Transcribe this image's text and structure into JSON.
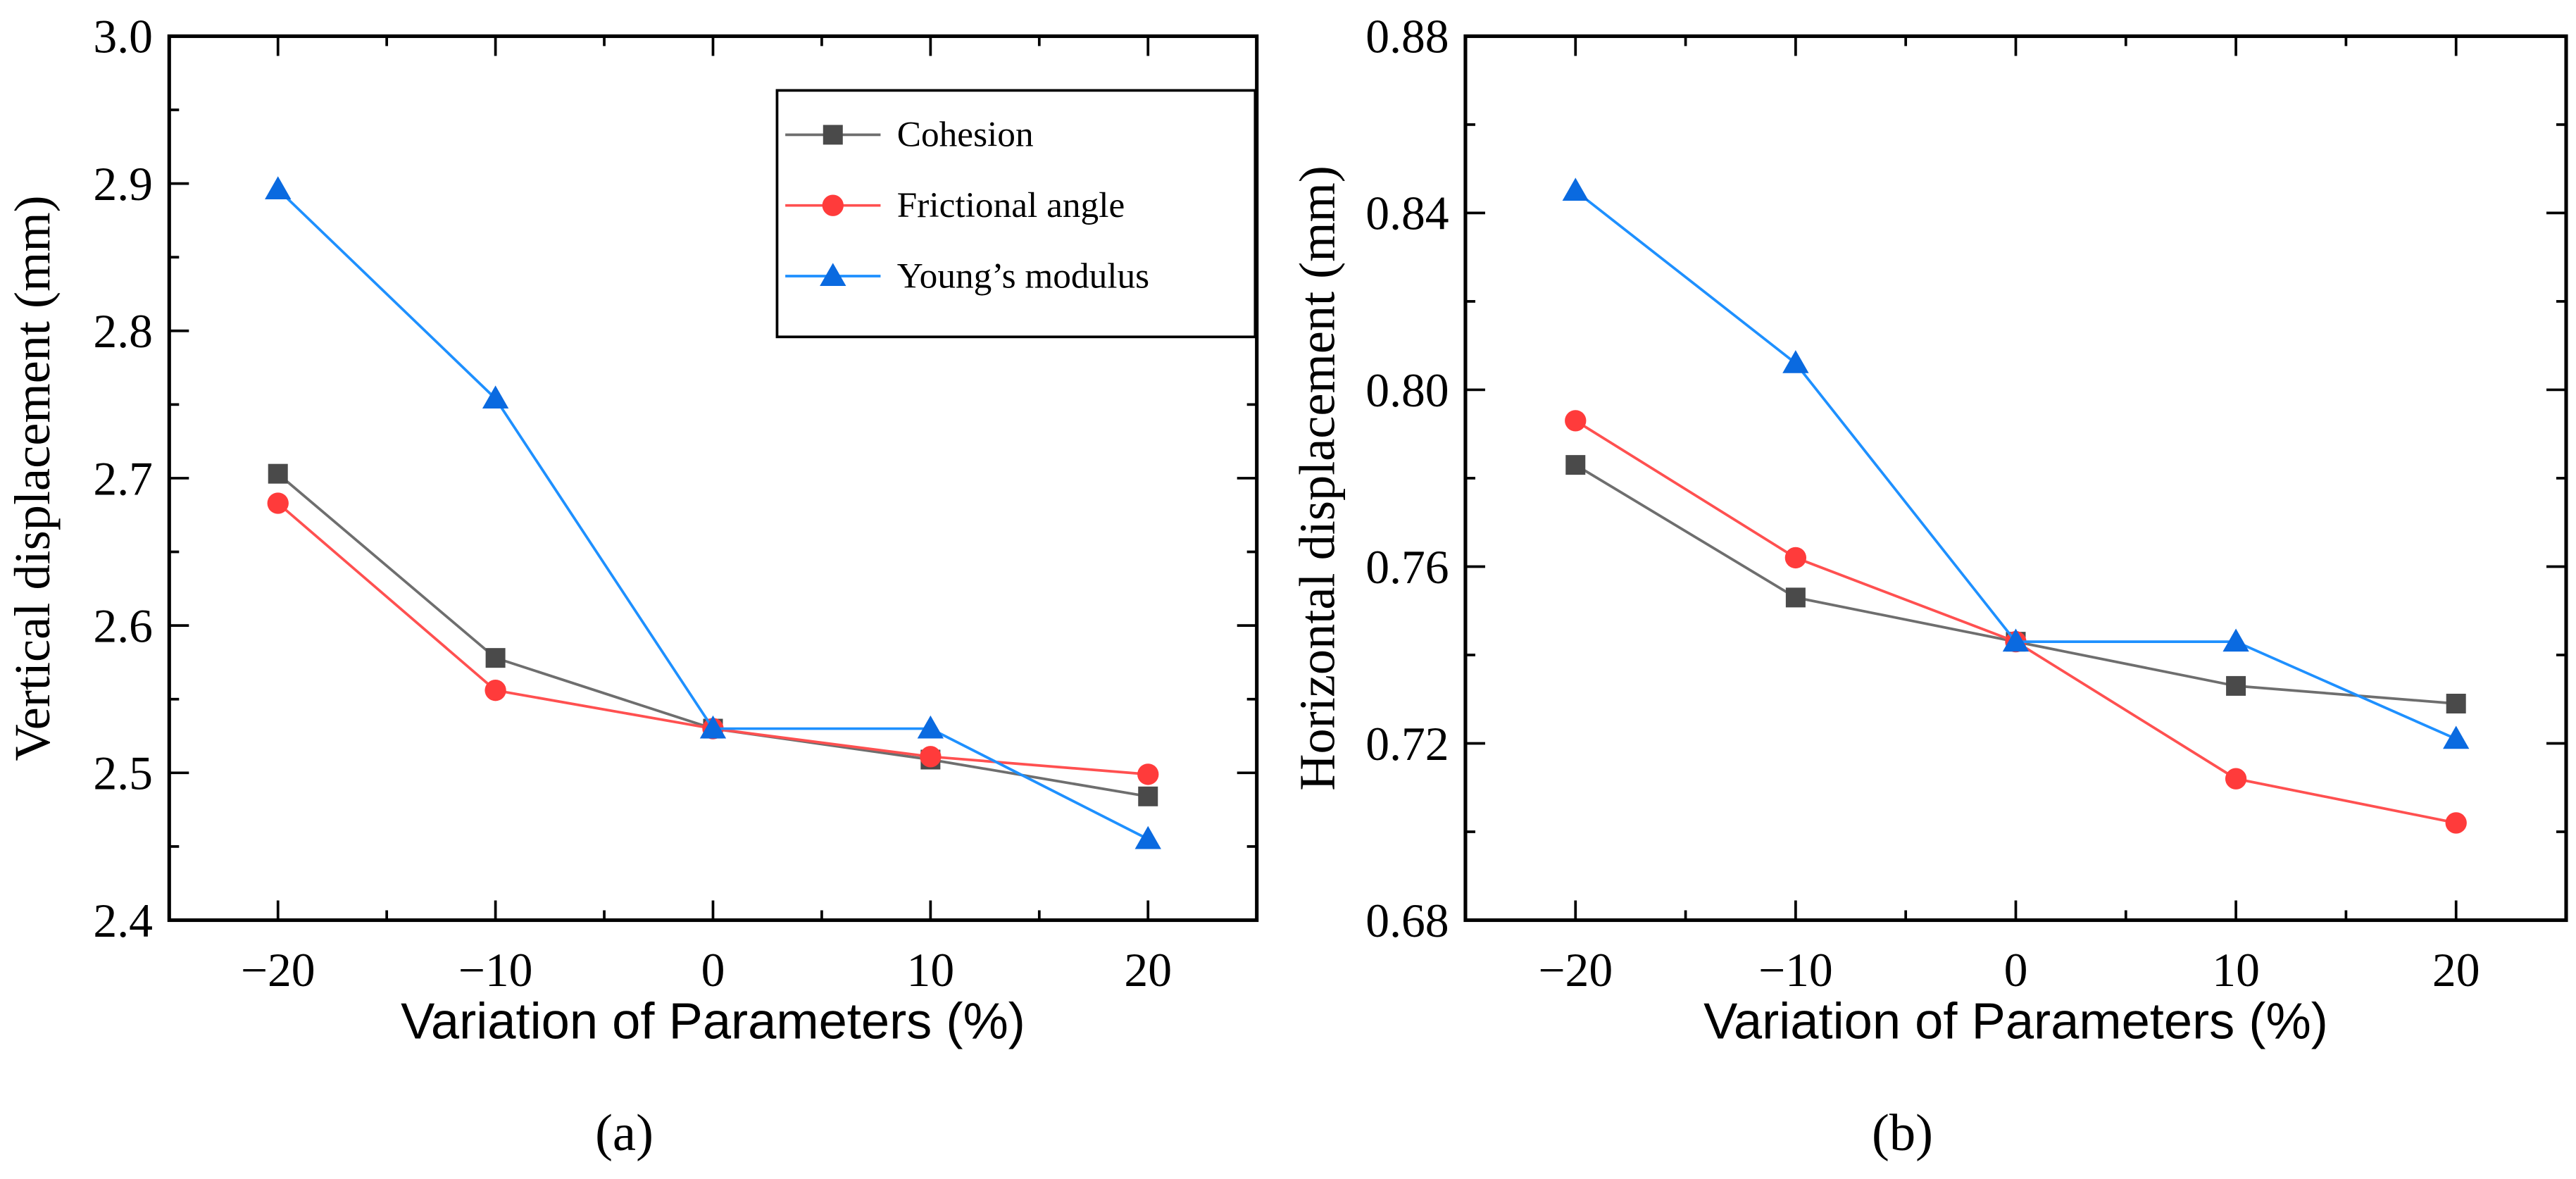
{
  "chart_data": [
    {
      "type": "line",
      "panel_label": "(a)",
      "xlabel": "Variation of  Parameters (%)",
      "ylabel": "Vertical displacement (mm)",
      "xlim": [
        -25,
        25
      ],
      "ylim": [
        2.4,
        3.0
      ],
      "xticks": [
        -20,
        -10,
        0,
        10,
        20
      ],
      "xtick_labels": [
        "−20",
        "−10",
        "0",
        "10",
        "20"
      ],
      "yticks": [
        2.4,
        2.5,
        2.6,
        2.7,
        2.8,
        2.9,
        3.0
      ],
      "ytick_labels": [
        "2.4",
        "2.5",
        "2.6",
        "2.7",
        "2.8",
        "2.9",
        "3.0"
      ],
      "grid": false,
      "legend": "top-right",
      "x": [
        -20,
        -10,
        0,
        10,
        20
      ],
      "series": [
        {
          "name": "Cohesion",
          "marker": "square",
          "color": "#4a4a4a",
          "line_color": "#6e6e6e",
          "values": [
            2.703,
            2.578,
            2.53,
            2.509,
            2.484
          ]
        },
        {
          "name": "Frictional angle",
          "marker": "circle",
          "color": "#ff3b3b",
          "line_color": "#ff5050",
          "values": [
            2.683,
            2.556,
            2.53,
            2.511,
            2.499
          ]
        },
        {
          "name": "Young’s modulus",
          "marker": "triangle",
          "color": "#0a6ae0",
          "line_color": "#1e90ff",
          "values": [
            2.896,
            2.754,
            2.53,
            2.53,
            2.455
          ]
        }
      ]
    },
    {
      "type": "line",
      "panel_label": "(b)",
      "xlabel": "Variation of  Parameters (%)",
      "ylabel": "Horizontal displacement (mm)",
      "xlim": [
        -25,
        25
      ],
      "ylim": [
        0.68,
        0.88
      ],
      "xticks": [
        -20,
        -10,
        0,
        10,
        20
      ],
      "xtick_labels": [
        "−20",
        "−10",
        "0",
        "10",
        "20"
      ],
      "yticks": [
        0.68,
        0.72,
        0.76,
        0.8,
        0.84,
        0.88
      ],
      "ytick_labels": [
        "0.68",
        "0.72",
        "0.76",
        "0.80",
        "0.84",
        "0.88"
      ],
      "grid": false,
      "legend": "none",
      "x": [
        -20,
        -10,
        0,
        10,
        20
      ],
      "series": [
        {
          "name": "Cohesion",
          "marker": "square",
          "color": "#4a4a4a",
          "line_color": "#6e6e6e",
          "values": [
            0.783,
            0.753,
            0.743,
            0.733,
            0.729
          ]
        },
        {
          "name": "Frictional angle",
          "marker": "circle",
          "color": "#ff3b3b",
          "line_color": "#ff5050",
          "values": [
            0.793,
            0.762,
            0.743,
            0.712,
            0.702
          ]
        },
        {
          "name": "Young’s modulus",
          "marker": "triangle",
          "color": "#0a6ae0",
          "line_color": "#1e90ff",
          "values": [
            0.845,
            0.806,
            0.743,
            0.743,
            0.721
          ]
        }
      ]
    }
  ]
}
